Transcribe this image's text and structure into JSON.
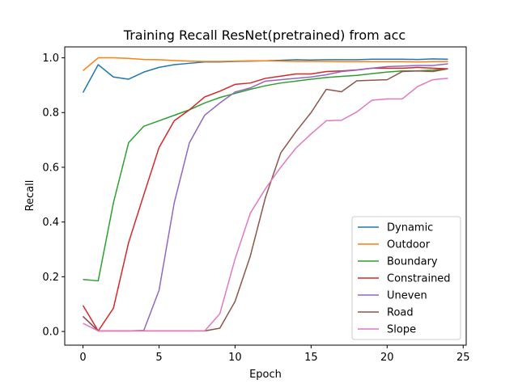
{
  "chart_data": {
    "type": "line",
    "title": "Training Recall ResNet(pretrained) from acc",
    "xlabel": "Epoch",
    "ylabel": "Recall",
    "xlim": [
      -1.2,
      25.2
    ],
    "ylim": [
      -0.05,
      1.04
    ],
    "xticks": [
      0,
      5,
      10,
      15,
      20,
      25
    ],
    "yticks": [
      0.0,
      0.2,
      0.4,
      0.6,
      0.8,
      1.0
    ],
    "xtick_labels": [
      "0",
      "5",
      "10",
      "15",
      "20",
      "25"
    ],
    "ytick_labels": [
      "0.0",
      "0.2",
      "0.4",
      "0.6",
      "0.8",
      "1.0"
    ],
    "grid": false,
    "legend_position": "lower-right",
    "x": [
      0,
      1,
      2,
      3,
      4,
      5,
      6,
      7,
      8,
      9,
      10,
      11,
      12,
      13,
      14,
      15,
      16,
      17,
      18,
      19,
      20,
      21,
      22,
      23,
      24
    ],
    "series": [
      {
        "name": "Dynamic",
        "color": "#1f77b4",
        "values": [
          0.873,
          0.975,
          0.93,
          0.922,
          0.948,
          0.965,
          0.975,
          0.98,
          0.985,
          0.985,
          0.987,
          0.988,
          0.989,
          0.991,
          0.993,
          0.992,
          0.993,
          0.993,
          0.993,
          0.995,
          0.995,
          0.995,
          0.994,
          0.996,
          0.995
        ]
      },
      {
        "name": "Outdoor",
        "color": "#ff7f0e",
        "values": [
          0.953,
          1.0,
          1.0,
          0.998,
          0.994,
          0.993,
          0.99,
          0.988,
          0.987,
          0.987,
          0.988,
          0.989,
          0.989,
          0.988,
          0.987,
          0.987,
          0.987,
          0.986,
          0.986,
          0.986,
          0.986,
          0.986,
          0.985,
          0.986,
          0.987
        ]
      },
      {
        "name": "Boundary",
        "color": "#2ca02c",
        "values": [
          0.19,
          0.185,
          0.47,
          0.69,
          0.75,
          0.77,
          0.79,
          0.81,
          0.835,
          0.855,
          0.87,
          0.885,
          0.898,
          0.908,
          0.915,
          0.922,
          0.928,
          0.932,
          0.936,
          0.942,
          0.948,
          0.952,
          0.952,
          0.955,
          0.96
        ]
      },
      {
        "name": "Constrained",
        "color": "#d62728",
        "values": [
          0.095,
          0.002,
          0.085,
          0.325,
          0.5,
          0.672,
          0.77,
          0.81,
          0.857,
          0.878,
          0.903,
          0.908,
          0.925,
          0.933,
          0.941,
          0.941,
          0.95,
          0.952,
          0.956,
          0.962,
          0.962,
          0.962,
          0.965,
          0.962,
          0.96
        ]
      },
      {
        "name": "Uneven",
        "color": "#9467bd",
        "values": [
          0.055,
          0.002,
          0.002,
          0.002,
          0.004,
          0.15,
          0.47,
          0.69,
          0.79,
          0.835,
          0.875,
          0.89,
          0.915,
          0.92,
          0.925,
          0.93,
          0.938,
          0.95,
          0.955,
          0.962,
          0.968,
          0.97,
          0.972,
          0.972,
          0.978
        ]
      },
      {
        "name": "Road",
        "color": "#8c564b",
        "values": [
          0.055,
          0.002,
          0.002,
          0.002,
          0.002,
          0.002,
          0.002,
          0.002,
          0.002,
          0.012,
          0.11,
          0.275,
          0.49,
          0.652,
          0.73,
          0.8,
          0.885,
          0.876,
          0.916,
          0.918,
          0.92,
          0.95,
          0.952,
          0.95,
          0.96
        ]
      },
      {
        "name": "Slope",
        "color": "#e377c2",
        "values": [
          0.03,
          0.002,
          0.002,
          0.002,
          0.002,
          0.002,
          0.002,
          0.002,
          0.002,
          0.065,
          0.265,
          0.432,
          0.522,
          0.6,
          0.67,
          0.722,
          0.77,
          0.772,
          0.802,
          0.845,
          0.85,
          0.85,
          0.895,
          0.92,
          0.925
        ]
      }
    ]
  }
}
